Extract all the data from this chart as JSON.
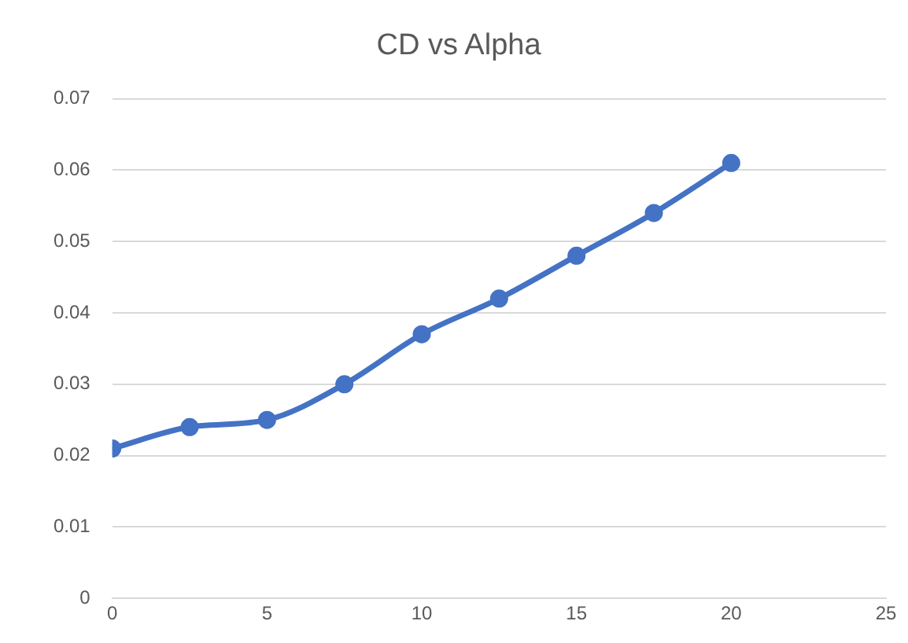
{
  "chart_data": {
    "type": "line",
    "title": "CD vs Alpha",
    "x": [
      0,
      2.5,
      5,
      7.5,
      10,
      12.5,
      15,
      17.5,
      20
    ],
    "series": [
      {
        "color": "#4472c4",
        "values": [
          0.021,
          0.024,
          0.025,
          0.03,
          0.037,
          0.042,
          0.048,
          0.054,
          0.061
        ]
      }
    ],
    "xlim": [
      0,
      25
    ],
    "xticks": [
      0,
      5,
      10,
      15,
      20,
      25
    ],
    "ylim": [
      0,
      0.07
    ],
    "yticks": [
      0,
      0.01,
      0.02,
      0.03,
      0.04,
      0.05,
      0.06,
      0.07
    ],
    "grid": "y",
    "legend": false,
    "marker": "circle",
    "line_style": "solid"
  }
}
